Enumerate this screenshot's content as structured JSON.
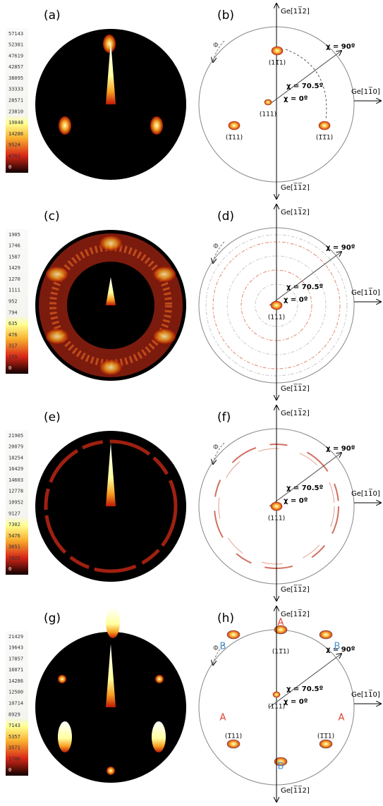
{
  "panels": [
    {
      "map": {
        "label": "(a)",
        "colorbar": [
          "57143",
          "52381",
          "47619",
          "42857",
          "38095",
          "33333",
          "28571",
          "23810",
          "19048",
          "14286",
          "9524",
          "4762",
          "0"
        ]
      },
      "pole": {
        "label": "(b)",
        "axes": {
          "top": "Ge[11̅2]",
          "right": "Ge[11̅0]",
          "bottom": "Ge[1̅1̅2]"
        },
        "phi": "Φ",
        "chi": [
          "χ = 90º",
          "χ = 70.5º",
          "χ = 0º"
        ],
        "millers": [
          "(11̅1)",
          "(111)",
          "(1̅11)",
          "(1̅1̅1)"
        ]
      }
    },
    {
      "map": {
        "label": "(c)",
        "colorbar": [
          "1905",
          "1746",
          "1587",
          "1429",
          "1270",
          "1111",
          "952",
          "794",
          "635",
          "476",
          "317",
          "159",
          "0"
        ]
      },
      "pole": {
        "label": "(d)",
        "axes": {
          "top": "Ge[11̅2]",
          "right": "Ge[11̅0]",
          "bottom": "Ge[1̅1̅2]"
        },
        "phi": "Φ",
        "chi": [
          "χ = 90º",
          "χ = 70.5º",
          "χ = 0º"
        ],
        "millers": [
          "(111)"
        ]
      }
    },
    {
      "map": {
        "label": "(e)",
        "colorbar": [
          "21905",
          "20079",
          "18254",
          "16429",
          "14603",
          "12778",
          "10952",
          "9127",
          "7302",
          "5476",
          "3651",
          "1825",
          "0"
        ]
      },
      "pole": {
        "label": "(f)",
        "axes": {
          "top": "Ge[11̅2]",
          "right": "Ge[11̅0]",
          "bottom": "Ge[1̅1̅2]"
        },
        "phi": "Φ",
        "chi": [
          "χ = 90º",
          "χ = 70.5º",
          "χ = 0º"
        ],
        "millers": [
          "(111)"
        ]
      }
    },
    {
      "map": {
        "label": "(g)",
        "colorbar": [
          "21429",
          "19643",
          "17857",
          "16071",
          "14286",
          "12500",
          "10714",
          "8929",
          "7143",
          "5357",
          "3571",
          "1786",
          "0"
        ]
      },
      "pole": {
        "label": "(h)",
        "axes": {
          "top": "Ge[11̅2]",
          "right": "Ge[11̅0]",
          "bottom": "Ge[1̅1̅2]"
        },
        "phi": "Φ",
        "chi": [
          "χ = 90º",
          "χ = 70.5º",
          "χ = 0º"
        ],
        "millers": [
          "(11̅1)",
          "(111)",
          "(1̅11)",
          "(1̅1̅1)"
        ],
        "letters": [
          "A",
          "B",
          "B",
          "A",
          "A",
          "B"
        ]
      }
    }
  ]
}
